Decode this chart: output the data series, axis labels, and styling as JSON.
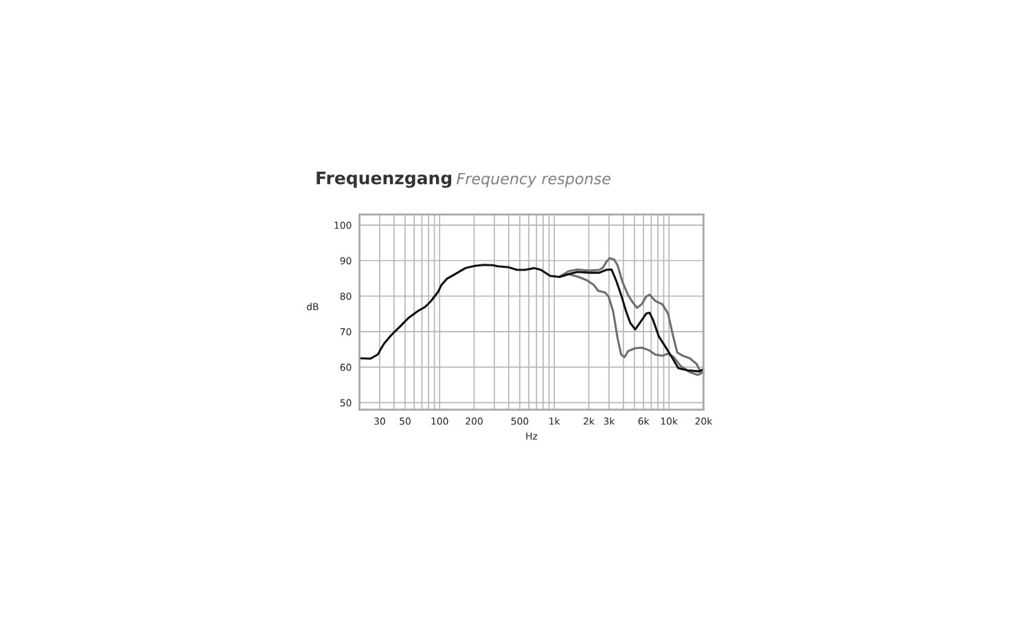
{
  "chart_data": {
    "type": "line",
    "title": "Frequenzgang",
    "subtitle": "Frequency response",
    "xlabel": "Hz",
    "ylabel": "dB",
    "log": "x",
    "grid": true,
    "marker": "none",
    "line_style": "solid",
    "xlim": [
      20,
      20000
    ],
    "ylim": [
      48,
      103
    ],
    "xticks": [
      {
        "value": 30,
        "label": "30"
      },
      {
        "value": 40,
        "label": null
      },
      {
        "value": 50,
        "label": "50"
      },
      {
        "value": 60,
        "label": null
      },
      {
        "value": 70,
        "label": null
      },
      {
        "value": 80,
        "label": null
      },
      {
        "value": 90,
        "label": null
      },
      {
        "value": 100,
        "label": "100"
      },
      {
        "value": 200,
        "label": "200"
      },
      {
        "value": 300,
        "label": null
      },
      {
        "value": 400,
        "label": null
      },
      {
        "value": 500,
        "label": "500"
      },
      {
        "value": 600,
        "label": null
      },
      {
        "value": 700,
        "label": null
      },
      {
        "value": 800,
        "label": null
      },
      {
        "value": 900,
        "label": null
      },
      {
        "value": 1000,
        "label": "1k"
      },
      {
        "value": 2000,
        "label": "2k"
      },
      {
        "value": 3000,
        "label": "3k"
      },
      {
        "value": 4000,
        "label": null
      },
      {
        "value": 5000,
        "label": null
      },
      {
        "value": 6000,
        "label": "6k"
      },
      {
        "value": 7000,
        "label": null
      },
      {
        "value": 8000,
        "label": null
      },
      {
        "value": 9000,
        "label": null
      },
      {
        "value": 10000,
        "label": "10k"
      },
      {
        "value": 20000,
        "label": "20k"
      }
    ],
    "yticks": [
      50,
      60,
      70,
      80,
      90,
      100
    ],
    "series": [
      {
        "color": "#6e6e6e",
        "x": [
          1107,
          1329,
          1596,
          2009,
          2472,
          2650,
          2840,
          3040,
          3330,
          3570,
          3920,
          4400,
          4810,
          5270,
          5780,
          6340,
          6790,
          7620,
          8750,
          9820,
          10770,
          11800,
          13220,
          15170,
          17420,
          19000,
          20000
        ],
        "values": [
          85.4,
          87.0,
          87.5,
          87.2,
          87.4,
          88.0,
          89.6,
          90.7,
          90.3,
          88.6,
          84.1,
          80.3,
          78.3,
          76.7,
          77.7,
          79.9,
          80.4,
          78.6,
          77.7,
          75.1,
          69.3,
          64.1,
          63.2,
          62.5,
          60.9,
          58.4,
          58.8
        ]
      },
      {
        "color": "#6e6e6e",
        "x": [
          1107,
          1329,
          1596,
          1918,
          2203,
          2415,
          2773,
          2970,
          3260,
          3570,
          3830,
          4100,
          4400,
          5040,
          5780,
          6640,
          7620,
          8750,
          9820,
          11020,
          12650,
          15170,
          17820,
          20000
        ],
        "values": [
          85.4,
          86.2,
          85.5,
          84.5,
          83.2,
          81.5,
          81.0,
          79.9,
          75.7,
          68.0,
          63.5,
          62.8,
          64.5,
          65.3,
          65.5,
          64.8,
          63.5,
          63.2,
          63.8,
          62.8,
          60.3,
          58.6,
          57.8,
          58.6
        ]
      },
      {
        "color": "#111111",
        "x": [
          20,
          25,
          29,
          30.7,
          32.9,
          36.9,
          39.5,
          45.4,
          53.3,
          64,
          75,
          84,
          97,
          104,
          116,
          140,
          168,
          202,
          243,
          292,
          320,
          403,
          472,
          555,
          667,
          765,
          920,
          1107,
          1329,
          1596,
          2009,
          2472,
          2840,
          3155,
          3490,
          3830,
          4190,
          4590,
          5080,
          5780,
          6340,
          6790,
          7280,
          8170,
          9160,
          10280,
          12080,
          14500,
          18240,
          20000
        ],
        "values": [
          62.5,
          62.4,
          63.6,
          65.1,
          66.7,
          68.6,
          69.6,
          71.5,
          73.8,
          75.7,
          77.0,
          78.6,
          81.2,
          83.2,
          84.9,
          86.4,
          87.9,
          88.5,
          88.8,
          88.7,
          88.4,
          88.1,
          87.4,
          87.4,
          87.9,
          87.4,
          85.7,
          85.4,
          86.2,
          86.8,
          86.6,
          86.6,
          87.4,
          87.5,
          84.1,
          80.3,
          76.1,
          72.5,
          70.6,
          73.2,
          75.1,
          75.3,
          73.2,
          68.6,
          66.1,
          63.5,
          59.7,
          59.1,
          58.8,
          59.4
        ]
      }
    ]
  }
}
